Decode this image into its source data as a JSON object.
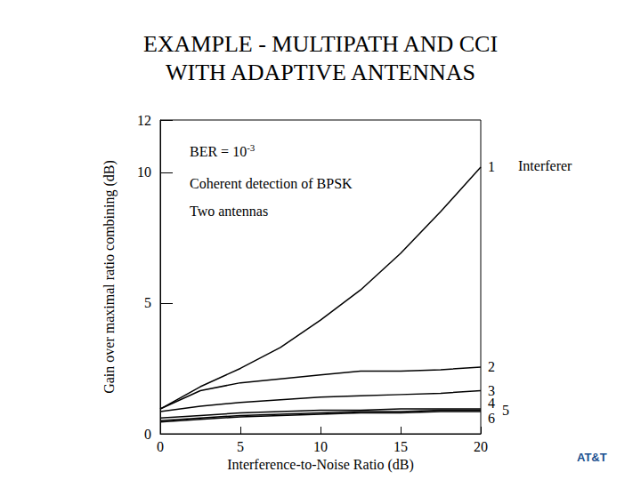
{
  "chart_data": {
    "type": "line",
    "title": "EXAMPLE - MULTIPATH AND CCI\nWITH ADAPTIVE ANTENNAS",
    "x_label": "Interference-to-Noise Ratio (dB)",
    "y_label": "Gain over maximal ratio combining (dB)",
    "annotations": [
      {
        "text": "BER = 10",
        "superscript": "-3"
      },
      {
        "text": "Coherent detection of BPSK"
      },
      {
        "text": "Two antennas"
      },
      {
        "text": "Interferer"
      },
      {
        "text": "AT&T"
      }
    ],
    "x": [
      0,
      2.5,
      5,
      7.5,
      10,
      12.5,
      15,
      17.5,
      20
    ],
    "series": [
      {
        "name": "1",
        "color": "#000000",
        "values": [
          0.95,
          1.8,
          2.5,
          3.3,
          4.35,
          5.5,
          6.9,
          8.5,
          10.2
        ]
      },
      {
        "name": "2",
        "color": "#000000",
        "values": [
          0.95,
          1.65,
          1.95,
          2.1,
          2.25,
          2.4,
          2.4,
          2.45,
          2.55
        ]
      },
      {
        "name": "3",
        "color": "#000000",
        "values": [
          0.85,
          1.05,
          1.2,
          1.3,
          1.4,
          1.45,
          1.5,
          1.55,
          1.65
        ]
      },
      {
        "name": "4",
        "color": "#000000",
        "values": [
          0.6,
          0.7,
          0.8,
          0.85,
          0.9,
          0.9,
          0.95,
          0.95,
          0.95
        ]
      },
      {
        "name": "5",
        "color": "#000000",
        "values": [
          0.5,
          0.6,
          0.7,
          0.75,
          0.8,
          0.85,
          0.85,
          0.9,
          0.9
        ]
      },
      {
        "name": "6",
        "color": "#000000",
        "values": [
          0.45,
          0.55,
          0.65,
          0.7,
          0.75,
          0.8,
          0.8,
          0.85,
          0.85
        ]
      }
    ],
    "xlim": [
      0,
      20
    ],
    "xticks": [
      0,
      5,
      10,
      15,
      20
    ],
    "ylim": [
      0,
      12
    ],
    "yticks": [
      0,
      5,
      10,
      12
    ],
    "grid": false
  }
}
